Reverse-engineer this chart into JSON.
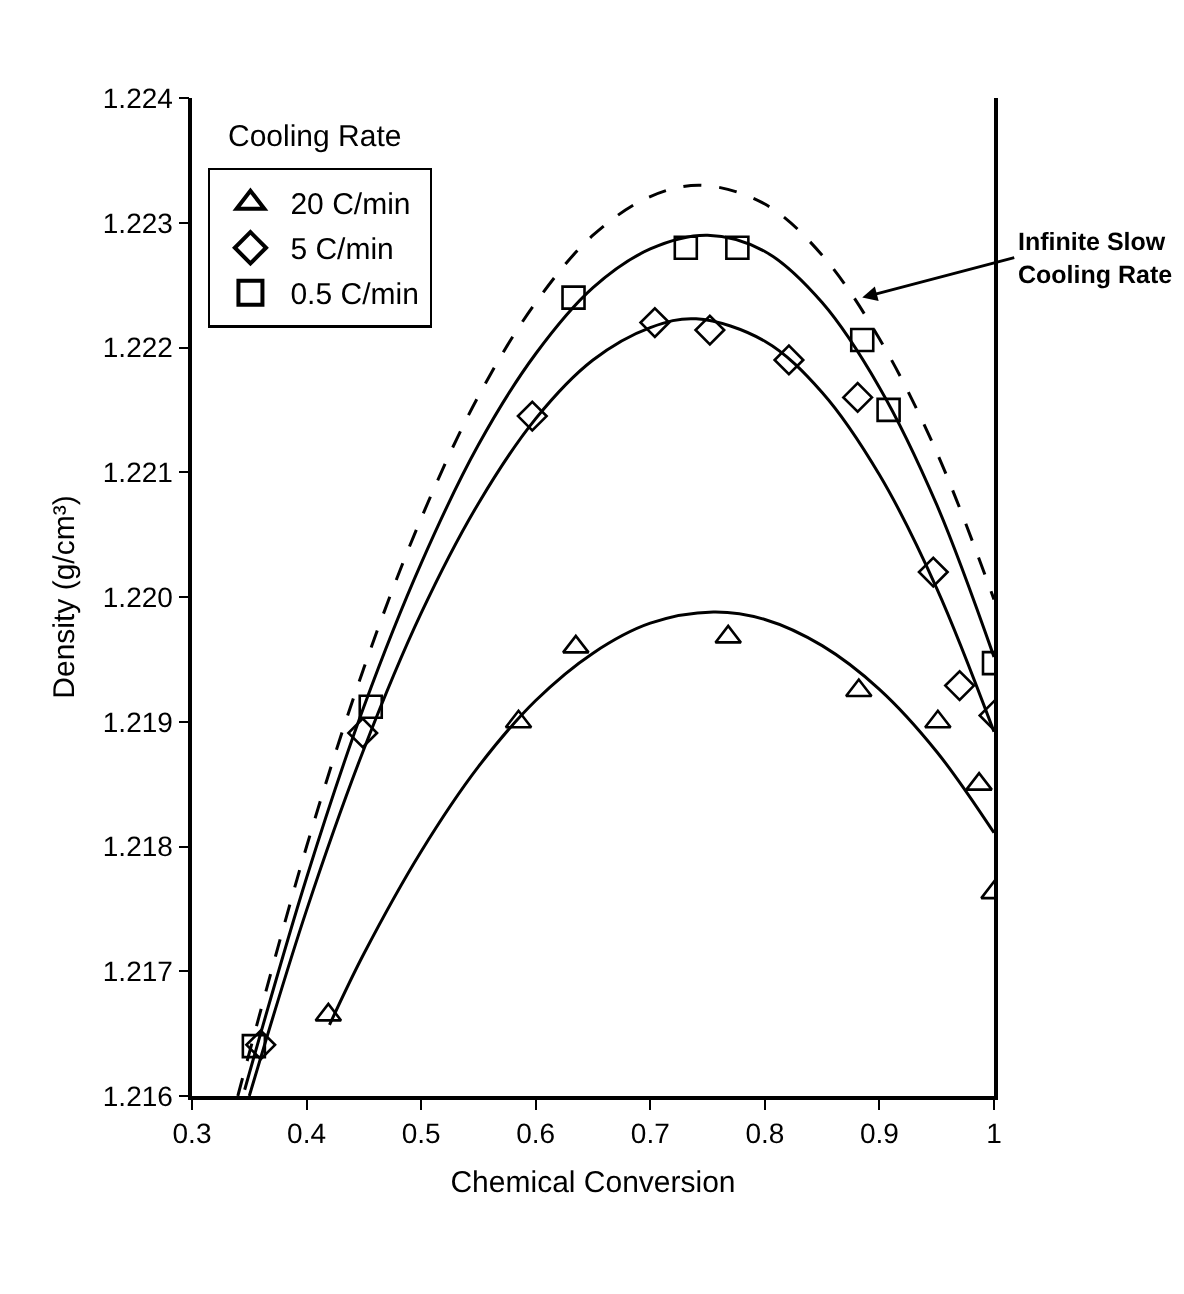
{
  "chart_data": {
    "type": "scatter",
    "xlabel": "Chemical Conversion",
    "ylabel": "Density (g/cm³)",
    "legend_title": "Cooling Rate",
    "legend": "top left",
    "xlim": [
      0.3,
      1.0
    ],
    "ylim": [
      1.216,
      1.224
    ],
    "xticks": [
      0.3,
      0.4,
      0.5,
      0.6,
      0.7,
      0.8,
      0.9,
      1
    ],
    "yticks": [
      1.216,
      1.217,
      1.218,
      1.219,
      {
        "value": 1.22,
        "label": "1.220"
      },
      1.221,
      1.222,
      1.223,
      1.224
    ],
    "annotations": [
      {
        "text": "Infinite Slow\nCooling Rate",
        "x": 0.885,
        "y": 1.2224
      }
    ],
    "series": [
      {
        "name": "20 C/min",
        "marker": "triangle",
        "color": "#000000",
        "x": [
          0.419,
          0.585,
          0.635,
          0.768,
          0.882,
          0.951,
          0.987,
          1.0
        ],
        "values": [
          1.21665,
          1.219,
          1.2196,
          1.21968,
          1.21925,
          1.219,
          1.2185,
          1.21763
        ]
      },
      {
        "name": "5 C/min",
        "marker": "diamond",
        "color": "#000000",
        "x": [
          0.36,
          0.449,
          0.597,
          0.704,
          0.752,
          0.821,
          0.881,
          0.947,
          0.97,
          1.0
        ],
        "values": [
          1.21641,
          1.21891,
          1.22145,
          1.2222,
          1.22214,
          1.2219,
          1.2216,
          1.2202,
          1.21929,
          1.21905
        ]
      },
      {
        "name": "0.5 C/min",
        "marker": "square",
        "color": "#000000",
        "x": [
          0.354,
          0.456,
          0.633,
          0.731,
          0.776,
          0.885,
          0.908,
          1.0
        ],
        "values": [
          1.2164,
          1.21912,
          1.2224,
          1.2228,
          1.2228,
          1.22206,
          1.2215,
          1.21947
        ]
      },
      {
        "type": "line",
        "marker": "none",
        "line_style": "solid",
        "color": "#000000",
        "x": [
          0.42,
          0.45,
          0.5,
          0.55,
          0.6,
          0.65,
          0.7,
          0.755,
          0.8,
          0.85,
          0.9,
          0.95,
          1.0
        ],
        "values": [
          1.21657,
          1.21714,
          1.21796,
          1.21864,
          1.21917,
          1.21955,
          1.21979,
          1.21988,
          1.21982,
          1.21961,
          1.21926,
          1.21876,
          1.21811
        ]
      },
      {
        "type": "line",
        "marker": "none",
        "line_style": "solid",
        "color": "#000000",
        "x": [
          0.35,
          0.4,
          0.45,
          0.5,
          0.55,
          0.6,
          0.65,
          0.7,
          0.74,
          0.8,
          0.85,
          0.9,
          0.95,
          1.0
        ],
        "values": [
          1.216,
          1.21749,
          1.21878,
          1.21987,
          1.22075,
          1.22143,
          1.2219,
          1.22216,
          1.22223,
          1.22205,
          1.22164,
          1.22098,
          1.22007,
          1.21892
        ]
      },
      {
        "type": "line",
        "marker": "none",
        "line_style": "solid",
        "color": "#000000",
        "x": [
          0.346,
          0.4,
          0.45,
          0.5,
          0.55,
          0.6,
          0.65,
          0.7,
          0.75,
          0.8,
          0.85,
          0.9,
          0.95,
          1.0
        ],
        "values": [
          1.21605,
          1.21775,
          1.21912,
          1.22027,
          1.22122,
          1.22195,
          1.22248,
          1.22279,
          1.2229,
          1.22277,
          1.22236,
          1.22168,
          1.22074,
          1.21952
        ]
      },
      {
        "type": "line",
        "marker": "none",
        "line_style": "dashed",
        "color": "#000000",
        "x": [
          0.34,
          0.4,
          0.45,
          0.5,
          0.55,
          0.6,
          0.65,
          0.7,
          0.745,
          0.8,
          0.85,
          0.9,
          0.95,
          1.0
        ],
        "values": [
          1.216,
          1.218,
          1.21943,
          1.22063,
          1.22161,
          1.22236,
          1.2229,
          1.22321,
          1.2233,
          1.22315,
          1.22274,
          1.22207,
          1.22116,
          1.21998
        ]
      }
    ]
  }
}
